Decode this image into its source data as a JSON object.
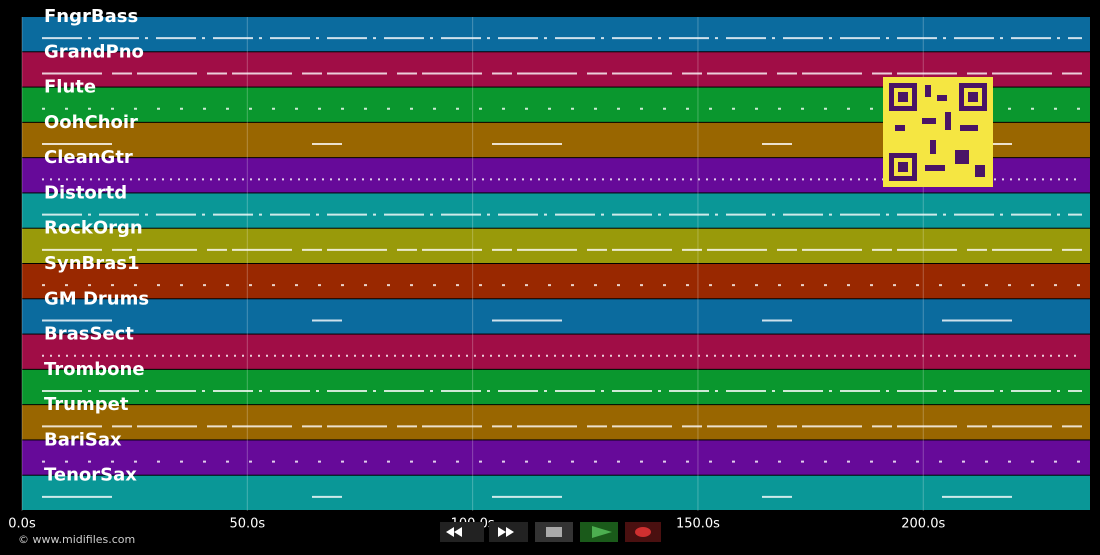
{
  "tracks": [
    {
      "name": "FngrBass",
      "color": "#0b6b9e"
    },
    {
      "name": "GrandPno",
      "color": "#a00d46"
    },
    {
      "name": "Flute",
      "color": "#0a972e"
    },
    {
      "name": "OohChoir",
      "color": "#996600"
    },
    {
      "name": "CleanGtr",
      "color": "#660a99"
    },
    {
      "name": "Distortd",
      "color": "#0a9797"
    },
    {
      "name": "RockOrgn",
      "color": "#999a0a"
    },
    {
      "name": "SynBras1",
      "color": "#992800"
    },
    {
      "name": "GM Drums",
      "color": "#0b6b9e"
    },
    {
      "name": "BrasSect",
      "color": "#a00d46"
    },
    {
      "name": "Trombone",
      "color": "#0a972e"
    },
    {
      "name": "Trumpet",
      "color": "#996600"
    },
    {
      "name": "BariSax",
      "color": "#660a99"
    },
    {
      "name": "TenorSax",
      "color": "#0a9797"
    }
  ],
  "time_axis": {
    "xlim": [
      0,
      237
    ],
    "ticks": [
      {
        "value": 0,
        "label": "0.0s"
      },
      {
        "value": 50,
        "label": "50.0s"
      },
      {
        "value": 100,
        "label": "100.0s"
      },
      {
        "value": 150,
        "label": "150.0s"
      },
      {
        "value": 200,
        "label": "200.0s"
      }
    ]
  },
  "copyright": "© www.midifiles.com"
}
